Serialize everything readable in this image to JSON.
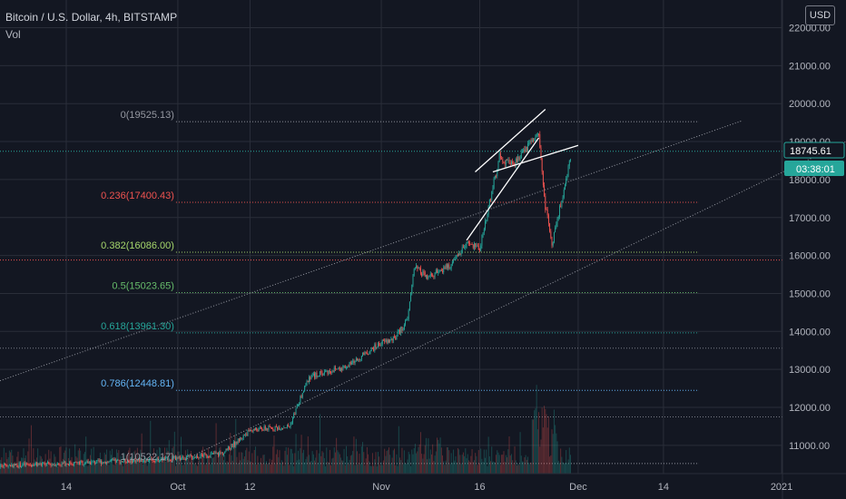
{
  "header": {
    "title": "Bitcoin / U.S. Dollar, 4h, BITSTAMP",
    "indicator": "Vol",
    "currency": "USD"
  },
  "price_tag": {
    "price": "18745.61",
    "countdown": "03:38:01",
    "color": "#26a69a"
  },
  "colors": {
    "bg": "#131722",
    "grid": "#2a2e39",
    "up": "#26a69a",
    "down": "#ef5350"
  },
  "chart_data": {
    "type": "candlestick",
    "y_ticks": [
      "22000.00",
      "21000.00",
      "20000.00",
      "19000.00",
      "18000.00",
      "17000.00",
      "16000.00",
      "15000.00",
      "14000.00",
      "13000.00",
      "12000.00",
      "11000.00"
    ],
    "x_ticks": [
      "14",
      "Oct",
      "12",
      "Nov",
      "16",
      "Dec",
      "14",
      "2021"
    ],
    "ylim": [
      10500,
      22200
    ],
    "fib_levels": [
      {
        "label": "0(19525.13)",
        "level": "0",
        "value": 19525.13,
        "color": "#9598a1"
      },
      {
        "label": "0.236(17400.43)",
        "level": "0.236",
        "value": 17400.43,
        "color": "#ef5350"
      },
      {
        "label": "0.382(16086.00)",
        "level": "0.382",
        "value": 16086.0,
        "color": "#a5d66b"
      },
      {
        "label": "0.5(15023.65)",
        "level": "0.5",
        "value": 15023.65,
        "color": "#66bb6a"
      },
      {
        "label": "0.618(13961.30)",
        "level": "0.618",
        "value": 13961.3,
        "color": "#26a69a"
      },
      {
        "label": "0.786(12448.81)",
        "level": "0.786",
        "value": 12448.81,
        "color": "#64b5f6"
      },
      {
        "label": "1(10522.17)",
        "level": "1",
        "value": 10522.17,
        "color": "#9598a1"
      }
    ],
    "price_path": [
      [
        "Sep 1",
        10450
      ],
      [
        "Sep 14",
        10520
      ],
      [
        "Oct 1",
        10650
      ],
      [
        "Oct 8",
        10800
      ],
      [
        "Oct 12",
        11400
      ],
      [
        "Oct 18",
        11500
      ],
      [
        "Oct 21",
        12800
      ],
      [
        "Oct 27",
        13100
      ],
      [
        "Nov 1",
        13700
      ],
      [
        "Nov 3",
        13800
      ],
      [
        "Nov 5",
        14300
      ],
      [
        "Nov 6",
        15700
      ],
      [
        "Nov 8",
        15400
      ],
      [
        "Nov 12",
        15800
      ],
      [
        "Nov 14",
        16300
      ],
      [
        "Nov 16",
        16200
      ],
      [
        "Nov 17",
        17000
      ],
      [
        "Nov 19",
        18600
      ],
      [
        "Nov 21",
        18400
      ],
      [
        "Nov 24",
        19000
      ],
      [
        "Nov 25",
        19200
      ],
      [
        "Nov 26",
        17300
      ],
      [
        "Nov 27",
        16300
      ],
      [
        "Nov 28",
        17100
      ],
      [
        "Nov 29",
        17800
      ],
      [
        "Nov 30",
        18745.61
      ]
    ],
    "channel_lines": [
      {
        "from": [
          "Nov 14",
          16400
        ],
        "to": [
          "Nov 25",
          19100
        ]
      },
      {
        "from": [
          "Nov 18",
          18200
        ],
        "to": [
          "Dec 1",
          18900
        ]
      }
    ]
  }
}
